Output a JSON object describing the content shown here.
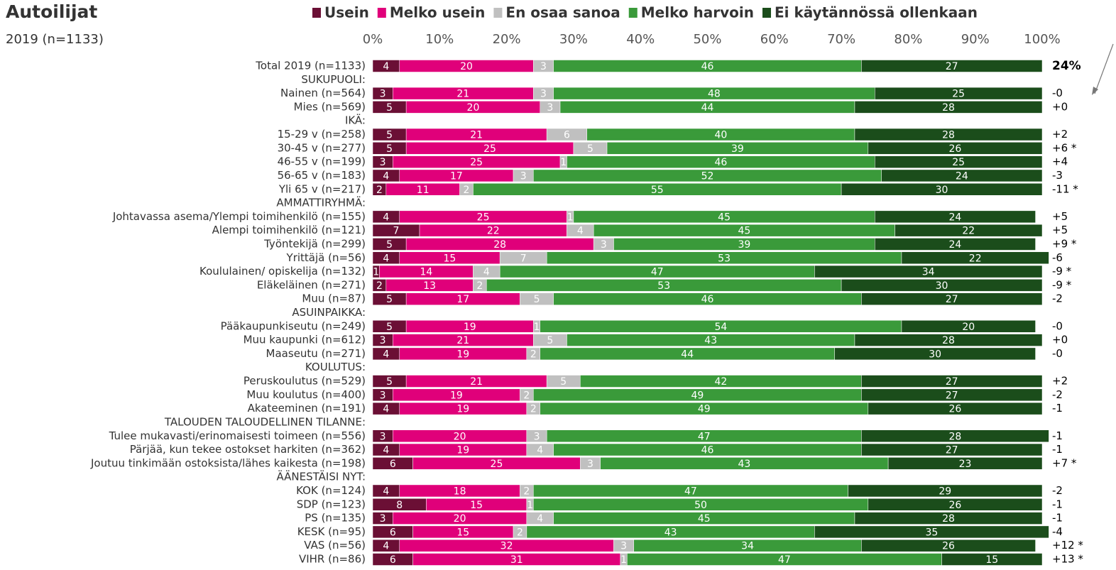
{
  "chart_data": {
    "type": "stacked_bar_horizontal",
    "title": "Autoilijat",
    "subtitle": "2019 (n=1133)",
    "xlim": [
      0,
      100
    ],
    "xticks": [
      {
        "value": 0,
        "label": "0%"
      },
      {
        "value": 10,
        "label": "10%"
      },
      {
        "value": 20,
        "label": "20%"
      },
      {
        "value": 30,
        "label": "30%"
      },
      {
        "value": 40,
        "label": "40%"
      },
      {
        "value": 50,
        "label": "50%"
      },
      {
        "value": 60,
        "label": "60%"
      },
      {
        "value": 70,
        "label": "70%"
      },
      {
        "value": 80,
        "label": "80%"
      },
      {
        "value": 90,
        "label": "90%"
      },
      {
        "value": 100,
        "label": "100%"
      }
    ],
    "legend": "top",
    "categories": [
      "Total 2019 (n=1133)",
      "SUKUPUOLI:",
      "Nainen (n=564)",
      "Mies (n=569)",
      "IKÄ:",
      "15-29 v (n=258)",
      "30-45 v (n=277)",
      "46-55 v (n=199)",
      "56-65 v (n=183)",
      "Yli 65 v (n=217)",
      "AMMATTIRYHMÄ:",
      "Johtavassa asema/Ylempi toimihenkilö (n=155)",
      "Alempi toimihenkilö (n=121)",
      "Työntekijä (n=299)",
      "Yrittäjä (n=56)",
      "Koululainen/ opiskelija (n=132)",
      "Eläkeläinen (n=271)",
      "Muu (n=87)",
      "ASUINPAIKKA:",
      "Pääkaupunkiseutu (n=249)",
      "Muu kaupunki (n=612)",
      "Maaseutu (n=271)",
      "KOULUTUS:",
      "Peruskoulutus (n=529)",
      "Muu koulutus (n=400)",
      "Akateeminen (n=191)",
      "TALOUDEN TALOUDELLINEN TILANNE:",
      "Tulee mukavasti/erinomaisesti toimeen (n=556)",
      "Pärjää, kun tekee ostokset harkiten (n=362)",
      "Joutuu tinkimään ostoksista/lähes kaikesta (n=198)",
      "ÄÄNESTÄISI NYT:",
      "KOK (n=124)",
      "SDP (n=123)",
      "PS (n=135)",
      "KESK (n=95)",
      "VAS (n=56)",
      "VIHR (n=86)"
    ],
    "series": [
      {
        "name": "Usein",
        "color": "#6b0f35",
        "values": [
          4,
          null,
          3,
          5,
          null,
          5,
          5,
          3,
          4,
          2,
          null,
          4,
          7,
          5,
          4,
          1,
          2,
          5,
          null,
          5,
          3,
          4,
          null,
          5,
          3,
          4,
          null,
          3,
          4,
          6,
          null,
          4,
          8,
          3,
          6,
          4,
          6
        ]
      },
      {
        "name": "Melko usein",
        "color": "#e0007a",
        "values": [
          20,
          null,
          21,
          20,
          null,
          21,
          25,
          25,
          17,
          11,
          null,
          25,
          22,
          28,
          15,
          14,
          13,
          17,
          null,
          19,
          21,
          19,
          null,
          21,
          19,
          19,
          null,
          20,
          19,
          25,
          null,
          18,
          15,
          20,
          15,
          32,
          31
        ]
      },
      {
        "name": "En osaa sanoa",
        "color": "#c0c0c0",
        "values": [
          3,
          null,
          3,
          3,
          null,
          6,
          5,
          1,
          3,
          2,
          null,
          1,
          4,
          3,
          7,
          4,
          2,
          5,
          null,
          1,
          5,
          2,
          null,
          5,
          2,
          2,
          null,
          3,
          4,
          3,
          null,
          2,
          1,
          4,
          2,
          3,
          1
        ]
      },
      {
        "name": "Melko harvoin",
        "color": "#3a9a3a",
        "values": [
          46,
          null,
          48,
          44,
          null,
          40,
          39,
          46,
          52,
          55,
          null,
          45,
          45,
          39,
          53,
          47,
          53,
          46,
          null,
          54,
          43,
          44,
          null,
          42,
          49,
          49,
          null,
          47,
          46,
          43,
          null,
          47,
          50,
          45,
          43,
          34,
          47
        ]
      },
      {
        "name": "Ei käytännössä ollenkaan",
        "color": "#1b4d1b",
        "values": [
          27,
          null,
          25,
          28,
          null,
          28,
          26,
          25,
          24,
          30,
          null,
          24,
          22,
          24,
          22,
          34,
          30,
          27,
          null,
          20,
          28,
          30,
          null,
          27,
          27,
          26,
          null,
          28,
          27,
          23,
          null,
          29,
          26,
          28,
          35,
          26,
          15
        ]
      }
    ],
    "right_labels": [
      "24%",
      null,
      "-0",
      "+0",
      null,
      "+2",
      "+6 *",
      "+4",
      "-3",
      "-11 *",
      null,
      "+5",
      "+5",
      "+9 *",
      "-6",
      "-9 *",
      "-9 *",
      "-2",
      null,
      "-0",
      "+0",
      "-0",
      null,
      "+2",
      "-2",
      "-1",
      null,
      "-1",
      "-1",
      "+7 *",
      null,
      "-2",
      "-1",
      "-1",
      "-4",
      "+12 *",
      "+13 *"
    ]
  }
}
